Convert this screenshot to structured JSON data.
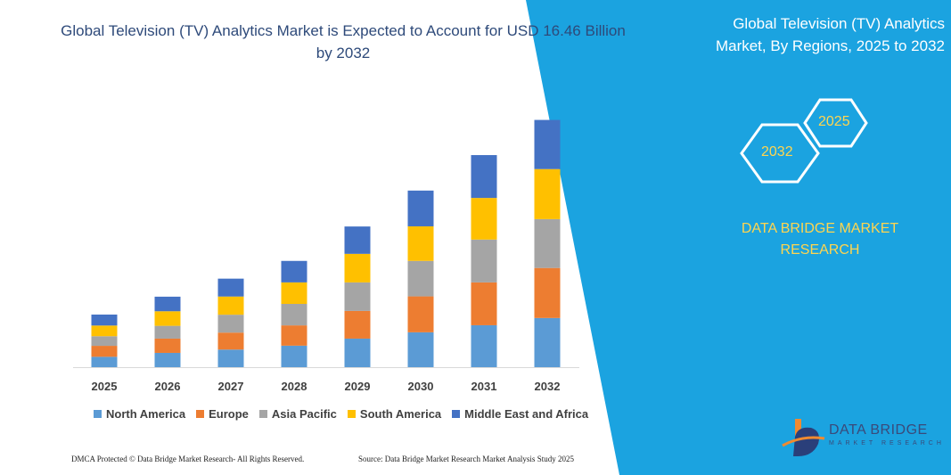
{
  "title": "Global Television (TV) Analytics Market is Expected to Account for USD 16.46 Billion by 2032",
  "right_panel": {
    "title": "Global Television (TV) Analytics Market, By Regions, 2025 to 2032",
    "hex_left": "2032",
    "hex_right": "2025",
    "brand": "DATA BRIDGE MARKET RESEARCH",
    "panel_color": "#1ba3e0",
    "brand_color": "#ffd54f"
  },
  "footer": {
    "left": "DMCA Protected © Data Bridge Market Research-  All Rights Reserved.",
    "right": "Source: Data Bridge Market Research  Market Analysis Study 2025"
  },
  "logo": {
    "name": "DATA BRIDGE",
    "sub": "MARKET RESEARCH"
  },
  "chart_data": {
    "type": "bar",
    "stacked": true,
    "title": "",
    "xlabel": "",
    "ylabel": "",
    "ylim": [
      0,
      18.5
    ],
    "grid": false,
    "legend_position": "bottom",
    "categories": [
      "2025",
      "2026",
      "2027",
      "2028",
      "2029",
      "2030",
      "2031",
      "2032"
    ],
    "series": [
      {
        "name": "North America",
        "color": "#5b9bd5",
        "values": [
          0.69,
          0.95,
          1.17,
          1.43,
          1.9,
          2.32,
          2.79,
          3.27
        ]
      },
      {
        "name": "Europe",
        "color": "#ed7d31",
        "values": [
          0.73,
          0.95,
          1.13,
          1.35,
          1.84,
          2.39,
          2.85,
          3.33
        ]
      },
      {
        "name": "Asia Pacific",
        "color": "#a5a5a5",
        "values": [
          0.64,
          0.85,
          1.19,
          1.43,
          1.9,
          2.36,
          2.85,
          3.25
        ]
      },
      {
        "name": "South America",
        "color": "#ffc000",
        "values": [
          0.71,
          0.97,
          1.21,
          1.43,
          1.9,
          2.3,
          2.77,
          3.33
        ]
      },
      {
        "name": "Middle East and Africa",
        "color": "#4472c4",
        "values": [
          0.73,
          0.97,
          1.19,
          1.43,
          1.82,
          2.38,
          2.85,
          3.27
        ]
      }
    ]
  }
}
